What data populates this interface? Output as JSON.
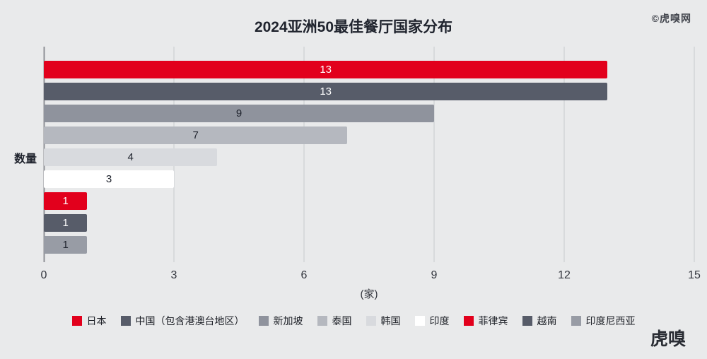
{
  "watermark": "©虎嗅网",
  "logo": "虎嗅",
  "chart_data": {
    "type": "bar",
    "orientation": "horizontal",
    "title": "2024亚洲50最佳餐厅国家分布",
    "xlabel": "(家)",
    "ylabel": "数量",
    "xlim": [
      0,
      15
    ],
    "xticks": [
      0,
      3,
      6,
      9,
      12,
      15
    ],
    "grid": "vertical",
    "legend_position": "bottom",
    "categories": [
      "日本",
      "中国（包含港澳台地区）",
      "新加坡",
      "泰国",
      "韩国",
      "印度",
      "菲律宾",
      "越南",
      "印度尼西亚"
    ],
    "values": [
      13,
      13,
      9,
      7,
      4,
      3,
      1,
      1,
      1
    ],
    "colors": [
      "#e2001c",
      "#575c69",
      "#8f939d",
      "#b5b8bf",
      "#d8dade",
      "#ffffff",
      "#e2001c",
      "#575c69",
      "#989ca5"
    ],
    "label_colors": [
      "#ffffff",
      "#ffffff",
      "#20242e",
      "#20242e",
      "#20242e",
      "#20242e",
      "#ffffff",
      "#ffffff",
      "#20242e"
    ]
  }
}
